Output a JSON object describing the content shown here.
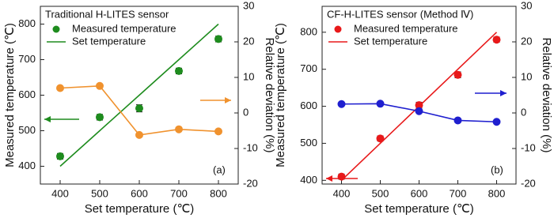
{
  "chart_data": [
    {
      "type": "line",
      "title": "Traditional H-LITES sensor",
      "annotation": "(a)",
      "x_label": "Set temperature (℃)",
      "y_label": "Measured temperature (℃)",
      "y2_label": "Relative deviation (%)",
      "x": [
        400,
        500,
        600,
        700,
        800
      ],
      "xlim": [
        350,
        850
      ],
      "xticks": [
        400,
        500,
        600,
        700,
        800
      ],
      "ylim": [
        350,
        850
      ],
      "yticks": [
        400,
        500,
        600,
        700,
        800
      ],
      "y2lim": [
        -20,
        30
      ],
      "y2ticks": [
        -20,
        -10,
        0,
        10,
        20,
        30
      ],
      "series": [
        {
          "name": "Measured temperature",
          "color": "#1e8c1e",
          "values": [
            428,
            538,
            563,
            668,
            758
          ],
          "errors": [
            8,
            8,
            10,
            8,
            8
          ],
          "marker": true,
          "line": false
        },
        {
          "name": "Set temperature",
          "color": "#1e8c1e",
          "values": [
            400,
            500,
            600,
            700,
            800
          ],
          "marker": false,
          "line": true
        },
        {
          "color": "#f0922e",
          "axis": "y2",
          "values": [
            7.0,
            7.6,
            -6.2,
            -4.6,
            -5.2
          ],
          "marker": true,
          "line": true
        }
      ]
    },
    {
      "type": "line",
      "title": "CF-H-LITES sensor (Method Ⅳ)",
      "annotation": "(b)",
      "x_label": "Set temperature (℃)",
      "y_label": "Measured temperature (℃)",
      "y2_label": "Relative deviation (%)",
      "x": [
        400,
        500,
        600,
        700,
        800
      ],
      "xlim": [
        350,
        850
      ],
      "xticks": [
        400,
        500,
        600,
        700,
        800
      ],
      "ylim": [
        390,
        870
      ],
      "yticks": [
        400,
        500,
        600,
        700,
        800
      ],
      "y2lim": [
        -20,
        30
      ],
      "y2ticks": [
        -20,
        -10,
        0,
        10,
        20,
        30
      ],
      "series": [
        {
          "name": "Measured temperature",
          "color": "#e8191a",
          "values": [
            410,
            513,
            603,
            685,
            780
          ],
          "errors": [
            7,
            7,
            8,
            8,
            7
          ],
          "marker": true,
          "line": false
        },
        {
          "name": "Set temperature",
          "color": "#e8191a",
          "values": [
            400,
            500,
            600,
            700,
            800
          ],
          "marker": false,
          "line": true
        },
        {
          "color": "#1f1fcf",
          "axis": "y2",
          "values": [
            2.5,
            2.6,
            0.5,
            -2.1,
            -2.5
          ],
          "marker": true,
          "line": true
        }
      ]
    }
  ]
}
